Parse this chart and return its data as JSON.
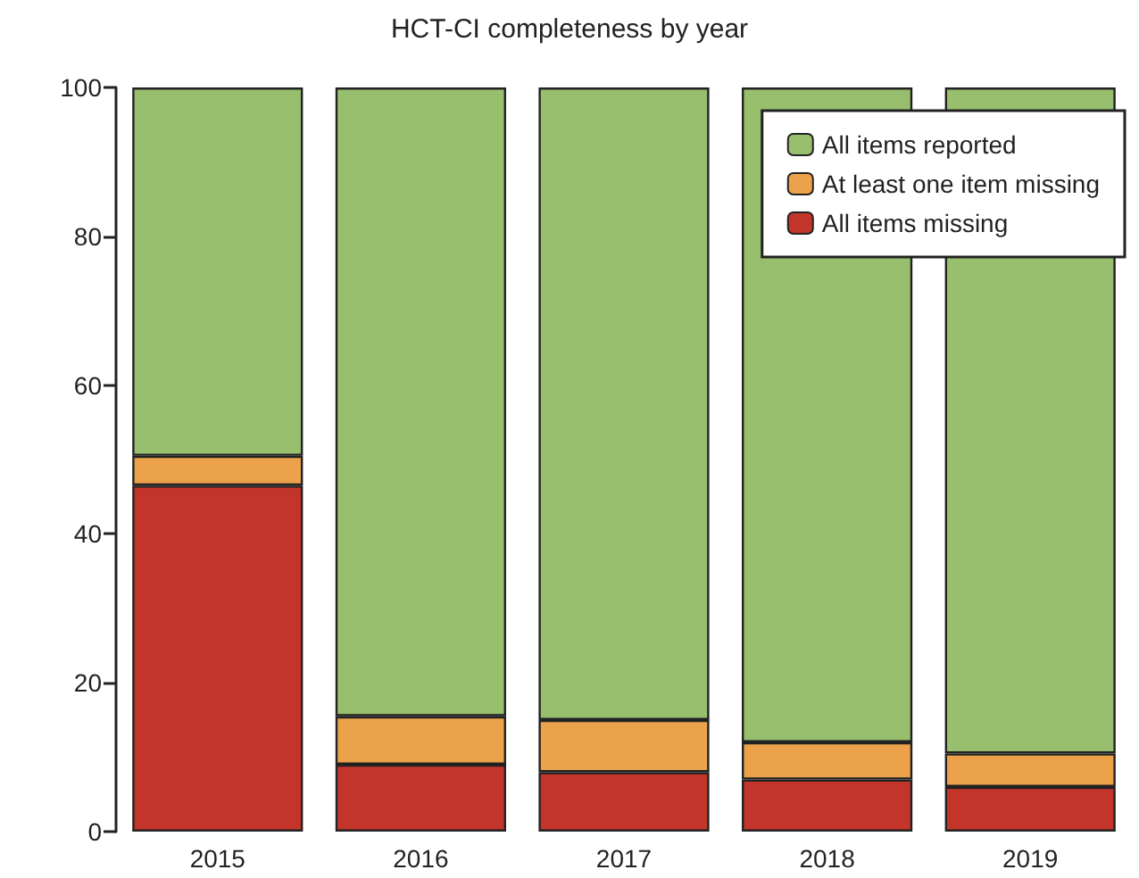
{
  "chart_data": {
    "type": "bar",
    "title": "HCT-CI completeness by year",
    "stacked": true,
    "categories": [
      "2015",
      "2016",
      "2017",
      "2018",
      "2019"
    ],
    "series": [
      {
        "name": "All items missing",
        "color": "#c3352b",
        "values": [
          46.5,
          9,
          8,
          7,
          6
        ]
      },
      {
        "name": "At least one item missing",
        "color": "#eba24a",
        "values": [
          4,
          6.5,
          7,
          5,
          4.5
        ]
      },
      {
        "name": "All items reported",
        "color": "#97bf6e",
        "values": [
          49.5,
          84.5,
          85,
          88,
          89.5
        ]
      }
    ],
    "ylim": [
      0,
      100
    ],
    "yticks": [
      0,
      20,
      40,
      60,
      80,
      100
    ],
    "grid": false,
    "legend": "top right"
  }
}
